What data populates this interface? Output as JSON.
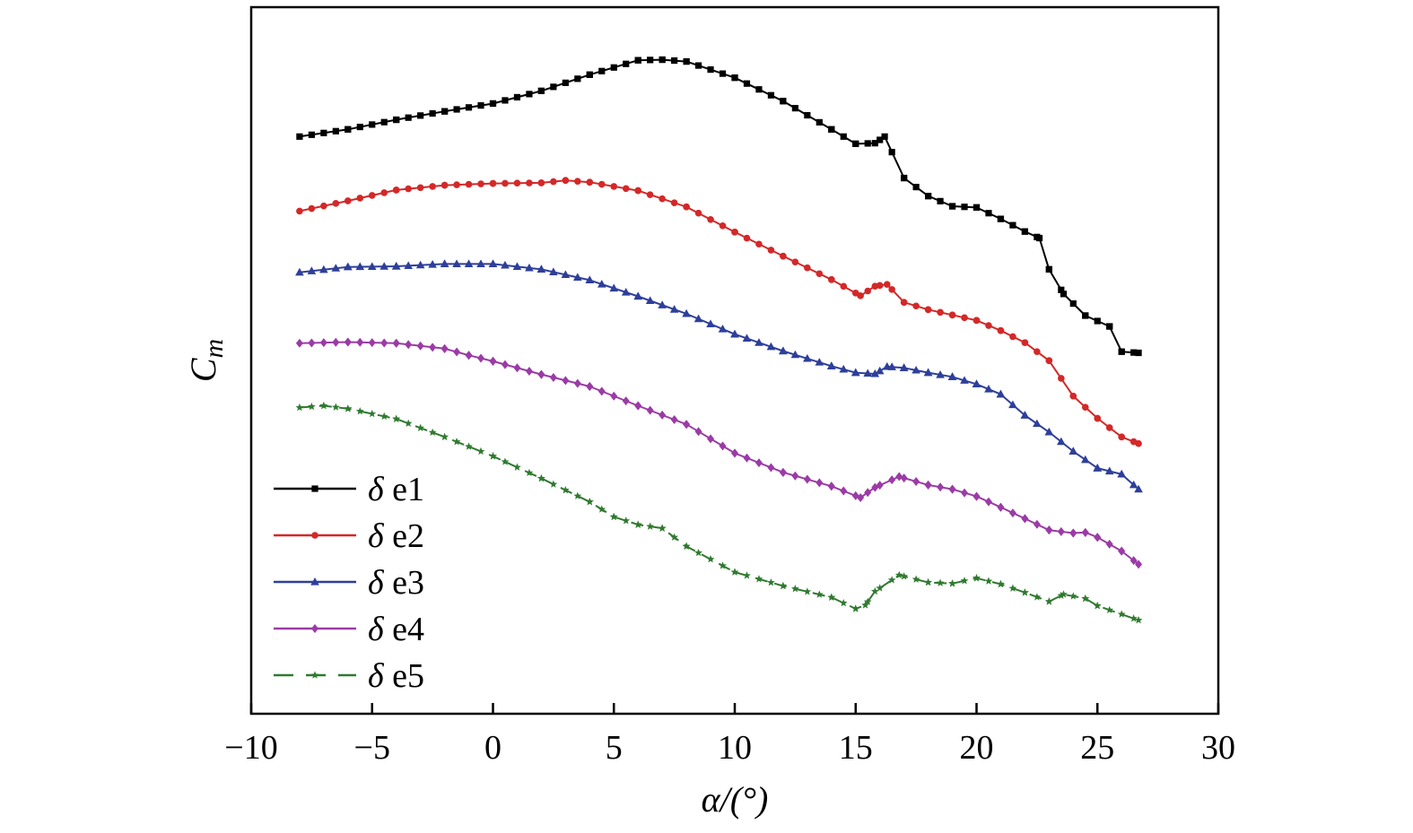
{
  "chart_data": {
    "type": "line",
    "xlabel": "α/(°)",
    "ylabel_main": "C",
    "ylabel_sub": "m",
    "xlim": [
      -10,
      30
    ],
    "ylim": [
      0,
      1
    ],
    "y_tick_labels_shown": false,
    "grid": false,
    "legend_position": "bottom-left",
    "x_ticks": [
      -10,
      -5,
      0,
      5,
      10,
      15,
      20,
      25,
      30
    ],
    "x_tick_labels": [
      "−10",
      "−5",
      "0",
      "5",
      "10",
      "15",
      "20",
      "25",
      "30"
    ],
    "series": [
      {
        "name": "δ e1",
        "symbol": "δ",
        "suffix": " e1",
        "color": "#000000",
        "marker": "square",
        "dash": "solid",
        "x": [
          -8,
          -6,
          -4,
          -2,
          0,
          2,
          4,
          6,
          7,
          8,
          10,
          12,
          14,
          15,
          15.8,
          16.2,
          17,
          18,
          19,
          20,
          21,
          22,
          22.6,
          23,
          23.6,
          24.5,
          25.5,
          26,
          26.7
        ],
        "y": [
          0.907,
          0.919,
          0.935,
          0.949,
          0.962,
          0.983,
          1.01,
          1.034,
          1.035,
          1.032,
          1.005,
          0.966,
          0.919,
          0.895,
          0.896,
          0.907,
          0.838,
          0.808,
          0.791,
          0.789,
          0.77,
          0.749,
          0.738,
          0.686,
          0.645,
          0.609,
          0.591,
          0.549,
          0.547
        ]
      },
      {
        "name": "δ e2",
        "symbol": "δ",
        "suffix": " e2",
        "color": "#d42828",
        "marker": "circle",
        "dash": "solid",
        "x": [
          -8,
          -6,
          -4,
          -2,
          0,
          2,
          3,
          4,
          6,
          8,
          10,
          12,
          14,
          15.2,
          15.8,
          16.3,
          17,
          18,
          19,
          20,
          21,
          22,
          23,
          24,
          25,
          26,
          26.7
        ],
        "y": [
          0.783,
          0.8,
          0.818,
          0.826,
          0.829,
          0.83,
          0.834,
          0.831,
          0.817,
          0.79,
          0.748,
          0.708,
          0.669,
          0.642,
          0.658,
          0.661,
          0.631,
          0.619,
          0.61,
          0.601,
          0.584,
          0.564,
          0.534,
          0.475,
          0.438,
          0.407,
          0.396
        ]
      },
      {
        "name": "δ e3",
        "symbol": "δ",
        "suffix": " e3",
        "color": "#2e3f9a",
        "marker": "triangle",
        "dash": "solid",
        "x": [
          -8,
          -6,
          -4,
          -2,
          0,
          2,
          4,
          6,
          8,
          10,
          12,
          14,
          15,
          15.8,
          16.3,
          17,
          18,
          19,
          20,
          21,
          22,
          23,
          24,
          25,
          26,
          26.7
        ],
        "y": [
          0.681,
          0.69,
          0.691,
          0.695,
          0.695,
          0.686,
          0.668,
          0.641,
          0.612,
          0.578,
          0.55,
          0.525,
          0.514,
          0.512,
          0.524,
          0.522,
          0.514,
          0.507,
          0.495,
          0.478,
          0.443,
          0.415,
          0.383,
          0.355,
          0.345,
          0.32
        ]
      },
      {
        "name": "δ e4",
        "symbol": "δ",
        "suffix": " e4",
        "color": "#9b3ba6",
        "marker": "diamond",
        "dash": "solid",
        "x": [
          -8,
          -6,
          -4,
          -2,
          -1,
          0,
          2,
          4,
          6,
          8,
          10,
          12,
          14,
          15.2,
          15.8,
          16.8,
          18,
          19,
          20,
          21,
          22,
          23,
          24,
          24.5,
          25,
          26,
          26.7
        ],
        "y": [
          0.563,
          0.565,
          0.563,
          0.554,
          0.543,
          0.533,
          0.511,
          0.491,
          0.459,
          0.428,
          0.38,
          0.348,
          0.325,
          0.306,
          0.323,
          0.341,
          0.327,
          0.32,
          0.308,
          0.29,
          0.271,
          0.252,
          0.247,
          0.248,
          0.24,
          0.217,
          0.195
        ]
      },
      {
        "name": "δ e5",
        "symbol": "δ",
        "suffix": " e5",
        "color": "#2f7a2f",
        "marker": "star",
        "dash": "dashed",
        "x": [
          -8,
          -7,
          -6,
          -4,
          -2,
          0,
          2,
          4,
          5,
          6,
          7,
          8,
          10,
          12,
          14,
          15,
          15.4,
          15.8,
          16.8,
          18,
          19,
          20,
          21,
          22,
          23,
          23.6,
          24.5,
          25,
          26.7
        ],
        "y": [
          0.456,
          0.459,
          0.454,
          0.437,
          0.407,
          0.375,
          0.338,
          0.299,
          0.274,
          0.261,
          0.255,
          0.225,
          0.182,
          0.159,
          0.14,
          0.121,
          0.127,
          0.15,
          0.177,
          0.165,
          0.163,
          0.172,
          0.162,
          0.148,
          0.133,
          0.145,
          0.138,
          0.126,
          0.102
        ]
      }
    ]
  }
}
